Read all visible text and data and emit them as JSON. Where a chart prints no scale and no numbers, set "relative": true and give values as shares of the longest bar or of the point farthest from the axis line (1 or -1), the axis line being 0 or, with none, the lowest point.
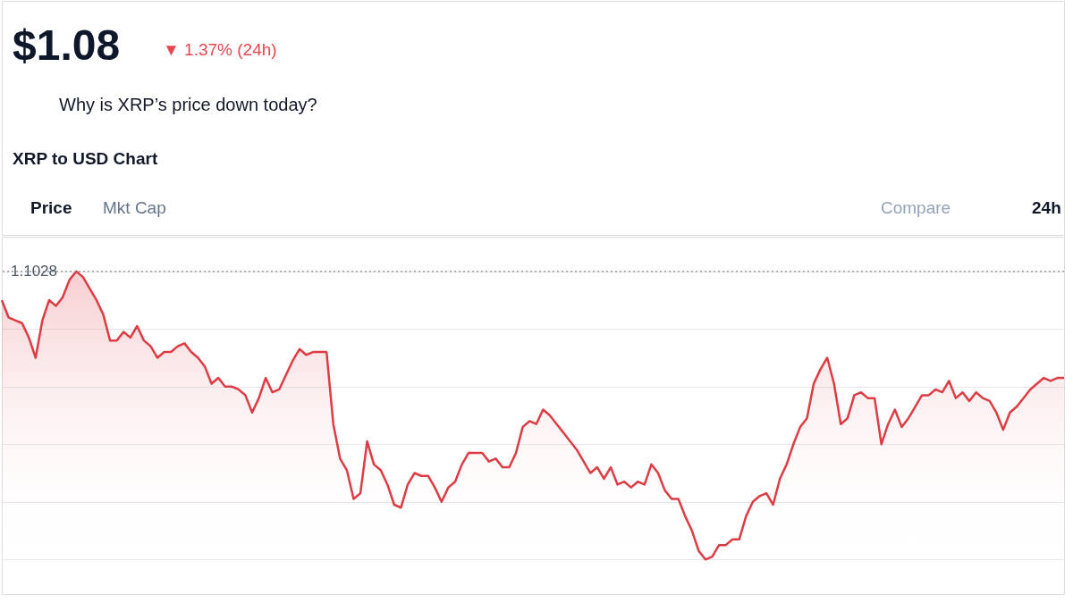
{
  "chart_data": {
    "type": "area",
    "title": "XRP to USD Chart",
    "relative": true,
    "grid": "y",
    "annotations": [
      "$1.08",
      "▼ 1.37% (24h)",
      "Why is XRP’s price down today?",
      "Price",
      "Mkt Cap",
      "Compare",
      "24h",
      "1.1028"
    ],
    "ref_lines": [
      {
        "axis": "y",
        "value": 1,
        "line_style": "dotted",
        "color": "#9aa0a6"
      }
    ],
    "categories": [
      null,
      null,
      null,
      null,
      null,
      null,
      null,
      null,
      null,
      null,
      null,
      null,
      null,
      null,
      null,
      null,
      null,
      null,
      null,
      null,
      null,
      null,
      null,
      null,
      null,
      null,
      null,
      null,
      null,
      null,
      null,
      null,
      null,
      null,
      null,
      null,
      null,
      null,
      null,
      null,
      null,
      null,
      null,
      null,
      null,
      null,
      null,
      null,
      null,
      null,
      null,
      null,
      null,
      null,
      null,
      null,
      null,
      null,
      null,
      null,
      null,
      null,
      null,
      null,
      null,
      null,
      null,
      null,
      null,
      null,
      null,
      null,
      null,
      null,
      null,
      null,
      null,
      null,
      null,
      null,
      null,
      null,
      null,
      null,
      null,
      null,
      null,
      null,
      null,
      null,
      null,
      null,
      null,
      null,
      null,
      null,
      null,
      null,
      null,
      null,
      null,
      null,
      null,
      null,
      null,
      null,
      null,
      null,
      null,
      null,
      null,
      null,
      null,
      null,
      null,
      null,
      null,
      null,
      null,
      null,
      null,
      null,
      null,
      null,
      null,
      null,
      null,
      null,
      null,
      null,
      null,
      null,
      null,
      null,
      null,
      null,
      null,
      null,
      null,
      null,
      null,
      null,
      null,
      null,
      null,
      null,
      null,
      null,
      null,
      null,
      null,
      null,
      null,
      null,
      null,
      null,
      null,
      null
    ],
    "series": [
      {
        "color": "#dd3c44",
        "values": [
          0.9,
          0.84,
          0.83,
          0.82,
          0.77,
          0.7,
          0.83,
          0.9,
          0.88,
          0.91,
          0.97,
          1,
          0.98,
          0.94,
          0.9,
          0.85,
          0.76,
          0.76,
          0.79,
          0.77,
          0.81,
          0.76,
          0.74,
          0.7,
          0.72,
          0.72,
          0.74,
          0.75,
          0.72,
          0.7,
          0.67,
          0.61,
          0.63,
          0.6,
          0.6,
          0.59,
          0.57,
          0.51,
          0.56,
          0.63,
          0.58,
          0.59,
          0.64,
          0.69,
          0.73,
          0.71,
          0.72,
          0.72,
          0.72,
          0.47,
          0.35,
          0.31,
          0.21,
          0.23,
          0.41,
          0.33,
          0.31,
          0.26,
          0.19,
          0.18,
          0.26,
          0.3,
          0.29,
          0.29,
          0.25,
          0.2,
          0.25,
          0.27,
          0.33,
          0.37,
          0.37,
          0.37,
          0.34,
          0.35,
          0.32,
          0.32,
          0.37,
          0.46,
          0.48,
          0.47,
          0.52,
          0.5,
          0.47,
          0.44,
          0.41,
          0.38,
          0.34,
          0.3,
          0.32,
          0.28,
          0.32,
          0.26,
          0.27,
          0.25,
          0.27,
          0.26,
          0.33,
          0.3,
          0.24,
          0.21,
          0.21,
          0.15,
          0.1,
          0.03,
          0,
          0.01,
          0.05,
          0.05,
          0.07,
          0.07,
          0.15,
          0.2,
          0.22,
          0.23,
          0.19,
          0.28,
          0.33,
          0.4,
          0.46,
          0.49,
          0.61,
          0.66,
          0.7,
          0.61,
          0.47,
          0.49,
          0.57,
          0.58,
          0.56,
          0.56,
          0.4,
          0.47,
          0.52,
          0.46,
          0.49,
          0.53,
          0.57,
          0.57,
          0.59,
          0.58,
          0.62,
          0.56,
          0.58,
          0.55,
          0.58,
          0.56,
          0.55,
          0.51,
          0.45,
          0.51,
          0.53,
          0.56,
          0.59,
          0.61,
          0.63,
          0.62,
          0.63,
          0.63
        ]
      }
    ]
  }
}
